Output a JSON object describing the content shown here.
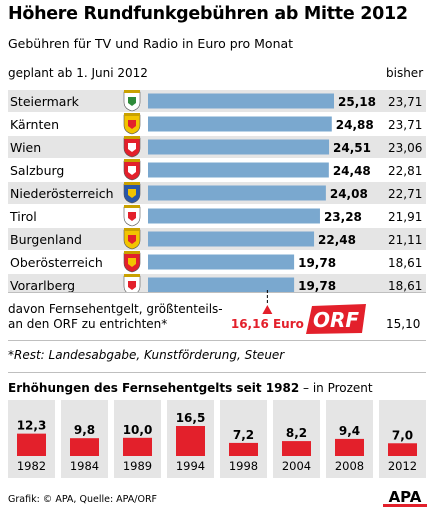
{
  "title": "Höhere Rundfunkgebühren ab Mitte 2012",
  "subtitle": "Gebühren für TV und Radio in Euro pro Monat",
  "col_planned": "geplant ab 1. Juni 2012",
  "col_before": "bisher",
  "note_line1": "davon Fernsehentgelt, größtenteils-",
  "note_line2": "an den ORF zu entrichten*",
  "note_marker_value": "16,16 Euro",
  "note_marker_number": 16.16,
  "note_before": "15,10",
  "orf_logo_text": "ORF",
  "footnote": "*Rest: Landesabgabe, Kunstförderung, Steuer",
  "section2_title_bold": "Erhöhungen des Fernsehentgelts seit 1982",
  "section2_title_rest": " – in Prozent",
  "credit": "Grafik: © APA, Quelle: APA/ORF",
  "apa_logo_text": "APA",
  "colors": {
    "bar_blue": "#7aa8cf",
    "bar_red": "#e3202b",
    "row_shade": "#e5e5e5",
    "marker_red": "#e3202b"
  },
  "chart_data": [
    {
      "type": "bar",
      "title": "",
      "categories": [
        "Steiermark",
        "Kärnten",
        "Wien",
        "Salzburg",
        "Niederösterreich",
        "Tirol",
        "Burgenland",
        "Oberösterreich",
        "Vorarlberg"
      ],
      "series": [
        {
          "name": "geplant ab 1. Juni 2012",
          "values": [
            25.18,
            24.88,
            24.51,
            24.48,
            24.08,
            23.28,
            22.48,
            19.78,
            19.78
          ],
          "labels": [
            "25,18",
            "24,88",
            "24,51",
            "24,48",
            "24,08",
            "23,28",
            "22,48",
            "19,78",
            "19,78"
          ]
        },
        {
          "name": "bisher",
          "values": [
            23.71,
            23.71,
            23.06,
            22.81,
            22.71,
            21.91,
            21.11,
            18.61,
            18.61
          ],
          "labels": [
            "23,71",
            "23,71",
            "23,06",
            "22,81",
            "22,71",
            "21,91",
            "21,11",
            "18,61",
            "18,61"
          ]
        }
      ],
      "coats_of_arms_icons": [
        "steiermark-coat-of-arms-icon",
        "kaernten-coat-of-arms-icon",
        "wien-coat-of-arms-icon",
        "salzburg-coat-of-arms-icon",
        "niederoesterreich-coat-of-arms-icon",
        "tirol-coat-of-arms-icon",
        "burgenland-coat-of-arms-icon",
        "oberoesterreich-coat-of-arms-icon",
        "vorarlberg-coat-of-arms-icon"
      ],
      "xlim": [
        0,
        25.18
      ]
    },
    {
      "type": "bar",
      "title": "Erhöhungen des Fernsehentgelts seit 1982 – in Prozent",
      "categories": [
        "1982",
        "1984",
        "1989",
        "1994",
        "1998",
        "2004",
        "2008",
        "2012"
      ],
      "values": [
        12.3,
        9.8,
        10.0,
        16.5,
        7.2,
        8.2,
        9.4,
        7.0
      ],
      "labels": [
        "12,3",
        "9,8",
        "10,0",
        "16,5",
        "7,2",
        "8,2",
        "9,4",
        "7,0"
      ],
      "ylim": [
        0,
        16.5
      ]
    }
  ]
}
